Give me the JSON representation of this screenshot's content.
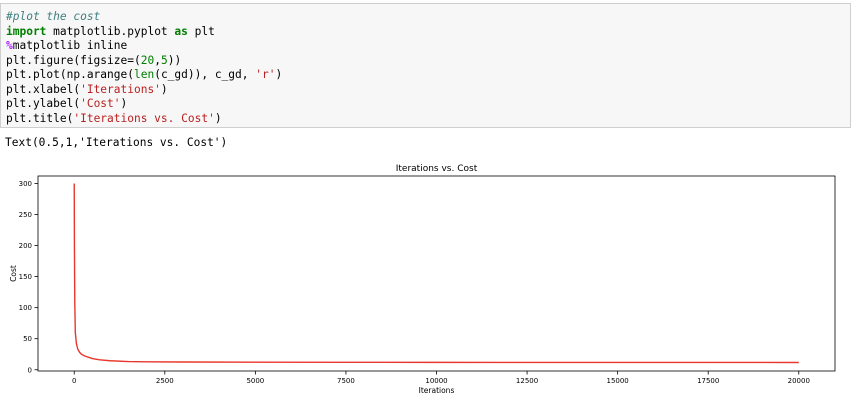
{
  "code_cell": {
    "lines": [
      [
        {
          "t": "#plot the cost",
          "c": "comment"
        }
      ],
      [
        {
          "t": "import",
          "c": "keyword"
        },
        {
          "t": " matplotlib.pyplot ",
          "c": "plain"
        },
        {
          "t": "as",
          "c": "keyword"
        },
        {
          "t": " plt",
          "c": "plain"
        }
      ],
      [
        {
          "t": "%",
          "c": "magic"
        },
        {
          "t": "matplotlib inline",
          "c": "plain"
        }
      ],
      [
        {
          "t": "plt.figure(figsize=(",
          "c": "plain"
        },
        {
          "t": "20",
          "c": "number"
        },
        {
          "t": ",",
          "c": "plain"
        },
        {
          "t": "5",
          "c": "number"
        },
        {
          "t": "))",
          "c": "plain"
        }
      ],
      [
        {
          "t": "plt.plot(np.arange(",
          "c": "plain"
        },
        {
          "t": "len",
          "c": "builtin"
        },
        {
          "t": "(c_gd)), c_gd, ",
          "c": "plain"
        },
        {
          "t": "'r'",
          "c": "string"
        },
        {
          "t": ")",
          "c": "plain"
        }
      ],
      [
        {
          "t": "plt.xlabel(",
          "c": "plain"
        },
        {
          "t": "'Iterations'",
          "c": "string"
        },
        {
          "t": ")",
          "c": "plain"
        }
      ],
      [
        {
          "t": "plt.ylabel(",
          "c": "plain"
        },
        {
          "t": "'Cost'",
          "c": "string"
        },
        {
          "t": ")",
          "c": "plain"
        }
      ],
      [
        {
          "t": "plt.title(",
          "c": "plain"
        },
        {
          "t": "'Iterations vs. Cost'",
          "c": "string"
        },
        {
          "t": ")",
          "c": "plain"
        }
      ]
    ]
  },
  "output": {
    "text": "Text(0.5,1,'Iterations vs. Cost')"
  },
  "colors": {
    "line": "#e8372c",
    "axes": "#000000",
    "cell_background": "#f7f7f7"
  },
  "chart_data": {
    "type": "line",
    "title": "Iterations vs. Cost",
    "xlabel": "Iterations",
    "ylabel": "Cost",
    "xlim": [
      -1000,
      21000
    ],
    "ylim": [
      -2,
      312
    ],
    "xticks": [
      0,
      2500,
      5000,
      7500,
      10000,
      12500,
      15000,
      17500,
      20000
    ],
    "yticks": [
      0,
      50,
      100,
      150,
      200,
      250,
      300
    ],
    "grid": false,
    "series": [
      {
        "color": "#e8372c",
        "x": [
          0,
          5,
          15,
          30,
          60,
          100,
          150,
          200,
          300,
          400,
          500,
          700,
          1000,
          1500,
          2000,
          3000,
          5000,
          7500,
          10000,
          15000,
          20000
        ],
        "y": [
          300,
          200,
          110,
          60,
          42,
          33,
          28,
          25,
          22,
          20,
          18,
          16,
          14.5,
          13.2,
          12.8,
          12.5,
          12.2,
          12,
          11.9,
          11.8,
          11.7
        ]
      }
    ]
  }
}
